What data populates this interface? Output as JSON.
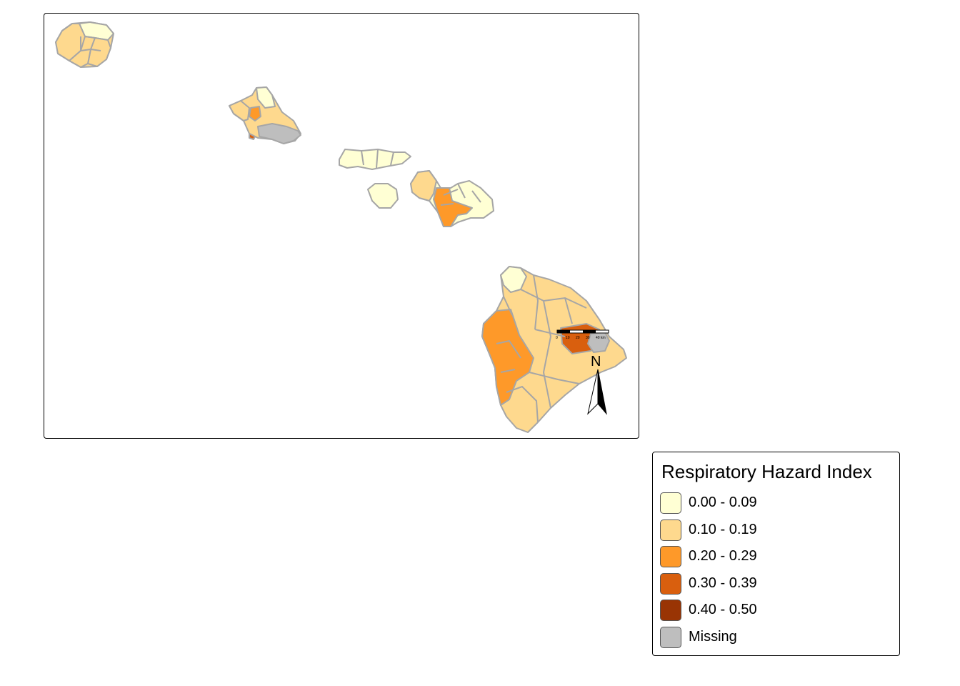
{
  "map": {
    "scale_bar_ticks": [
      "0",
      "10",
      "20",
      "30",
      "40 km"
    ],
    "north_label": "N",
    "border_color": "#a6a6a6"
  },
  "legend": {
    "title": "Respiratory Hazard Index",
    "items": [
      {
        "label": "0.00 - 0.09",
        "color": "#ffffd4"
      },
      {
        "label": "0.10 - 0.19",
        "color": "#fed98e"
      },
      {
        "label": "0.20 - 0.29",
        "color": "#fe9929"
      },
      {
        "label": "0.30 - 0.39",
        "color": "#d95f0e"
      },
      {
        "label": "0.40 - 0.50",
        "color": "#993404"
      },
      {
        "label": "Missing",
        "color": "#bebebe"
      }
    ]
  }
}
